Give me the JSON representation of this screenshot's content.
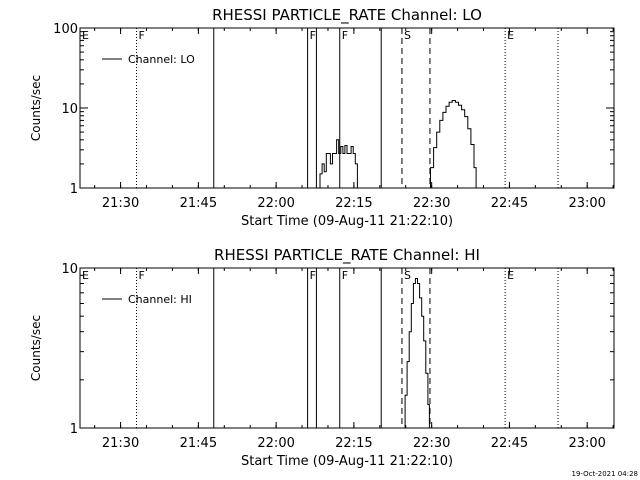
{
  "footer": {
    "timestamp": "19-Oct-2021 04:28"
  },
  "chart_data": [
    {
      "type": "line",
      "title": "RHESSI PARTICLE_RATE Channel: LO",
      "xlabel": "Start Time (09-Aug-11 21:22:10)",
      "ylabel": "Counts/sec",
      "x_unit": "minutes after 21:22:10",
      "xlim": [
        0,
        103
      ],
      "ylim": [
        1,
        100
      ],
      "y_scale": "log",
      "x_ticks": [
        {
          "label": "21:30",
          "x": 7.83
        },
        {
          "label": "21:45",
          "x": 22.83
        },
        {
          "label": "22:00",
          "x": 37.83
        },
        {
          "label": "22:15",
          "x": 52.83
        },
        {
          "label": "22:30",
          "x": 67.83
        },
        {
          "label": "22:45",
          "x": 82.83
        },
        {
          "label": "23:00",
          "x": 97.83
        }
      ],
      "y_ticks": [
        {
          "label": "1",
          "value": 1
        },
        {
          "label": "10",
          "value": 10
        },
        {
          "label": "100",
          "value": 100
        }
      ],
      "legend": {
        "position": "top-left",
        "entries": [
          "Channel: LO"
        ]
      },
      "series": [
        {
          "name": "Channel: LO",
          "x": [
            45.9,
            46.3,
            46.7,
            47.1,
            47.5,
            47.9,
            48.3,
            48.7,
            49.1,
            49.5,
            49.9,
            50.3,
            50.7,
            51.1,
            51.5,
            51.9,
            52.3,
            52.7,
            53.1,
            53.5
          ],
          "y": [
            1.0,
            1.5,
            2.0,
            1.6,
            2.7,
            2.7,
            2.0,
            2.7,
            2.7,
            4.0,
            2.7,
            3.3,
            2.7,
            3.4,
            2.7,
            2.7,
            3.3,
            2.7,
            2.0,
            1.0
          ]
        },
        {
          "name": "",
          "x": [
            67.0,
            67.6,
            68.2,
            68.8,
            69.4,
            70.0,
            70.6,
            71.2,
            71.8,
            72.4,
            73.0,
            73.6,
            74.2,
            74.8,
            75.4,
            76.0,
            76.4
          ],
          "y": [
            1.0,
            1.8,
            3.2,
            5.0,
            7.0,
            8.8,
            10.5,
            11.8,
            12.4,
            11.8,
            10.8,
            9.5,
            7.8,
            5.5,
            3.5,
            1.8,
            1.0
          ]
        }
      ],
      "markers": [
        {
          "label": "E",
          "x": 0.0,
          "style": "dotted",
          "show_line": false
        },
        {
          "label": "F",
          "x": 10.9,
          "style": "dotted",
          "show_line": true
        },
        {
          "label": "",
          "x": 25.8,
          "style": "solid",
          "show_line": true
        },
        {
          "label": "F",
          "x": 43.9,
          "style": "solid",
          "show_line": true
        },
        {
          "label": "",
          "x": 45.6,
          "style": "solid",
          "show_line": true
        },
        {
          "label": "F",
          "x": 50.1,
          "style": "solid",
          "show_line": true
        },
        {
          "label": "",
          "x": 58.1,
          "style": "solid",
          "show_line": true
        },
        {
          "label": "S",
          "x": 62.1,
          "style": "dashed",
          "show_line": true
        },
        {
          "label": "",
          "x": 67.5,
          "style": "dashed",
          "show_line": true
        },
        {
          "label": "E",
          "x": 82.0,
          "style": "dotted",
          "show_line": true
        },
        {
          "label": "",
          "x": 92.2,
          "style": "dotted",
          "show_line": true
        }
      ]
    },
    {
      "type": "line",
      "title": "RHESSI PARTICLE_RATE Channel: HI",
      "xlabel": "Start Time (09-Aug-11 21:22:10)",
      "ylabel": "Counts/sec",
      "x_unit": "minutes after 21:22:10",
      "xlim": [
        0,
        103
      ],
      "ylim": [
        1,
        10
      ],
      "y_scale": "log",
      "x_ticks": [
        {
          "label": "21:30",
          "x": 7.83
        },
        {
          "label": "21:45",
          "x": 22.83
        },
        {
          "label": "22:00",
          "x": 37.83
        },
        {
          "label": "22:15",
          "x": 52.83
        },
        {
          "label": "22:30",
          "x": 67.83
        },
        {
          "label": "22:45",
          "x": 82.83
        },
        {
          "label": "23:00",
          "x": 97.83
        }
      ],
      "y_ticks": [
        {
          "label": "1",
          "value": 1
        },
        {
          "label": "10",
          "value": 10
        }
      ],
      "legend": {
        "position": "top-left",
        "entries": [
          "Channel: HI"
        ]
      },
      "series": [
        {
          "name": "Channel: HI",
          "x": [
            62.3,
            62.7,
            63.1,
            63.5,
            63.9,
            64.3,
            64.7,
            65.1,
            65.5,
            65.9,
            66.3,
            66.7,
            67.1,
            67.4
          ],
          "y": [
            1.0,
            1.6,
            2.6,
            4.0,
            6.0,
            8.0,
            8.6,
            8.0,
            6.5,
            5.0,
            3.5,
            2.2,
            1.4,
            1.0
          ]
        }
      ],
      "markers": [
        {
          "label": "E",
          "x": 0.0,
          "style": "dotted",
          "show_line": false
        },
        {
          "label": "F",
          "x": 10.9,
          "style": "dotted",
          "show_line": true
        },
        {
          "label": "",
          "x": 25.8,
          "style": "solid",
          "show_line": true
        },
        {
          "label": "F",
          "x": 43.9,
          "style": "solid",
          "show_line": true
        },
        {
          "label": "",
          "x": 45.6,
          "style": "solid",
          "show_line": true
        },
        {
          "label": "F",
          "x": 50.1,
          "style": "solid",
          "show_line": true
        },
        {
          "label": "",
          "x": 58.1,
          "style": "solid",
          "show_line": true
        },
        {
          "label": "S",
          "x": 62.1,
          "style": "dashed",
          "show_line": true
        },
        {
          "label": "",
          "x": 67.5,
          "style": "dashed",
          "show_line": true
        },
        {
          "label": "E",
          "x": 82.0,
          "style": "dotted",
          "show_line": true
        },
        {
          "label": "",
          "x": 92.2,
          "style": "dotted",
          "show_line": true
        }
      ]
    }
  ]
}
